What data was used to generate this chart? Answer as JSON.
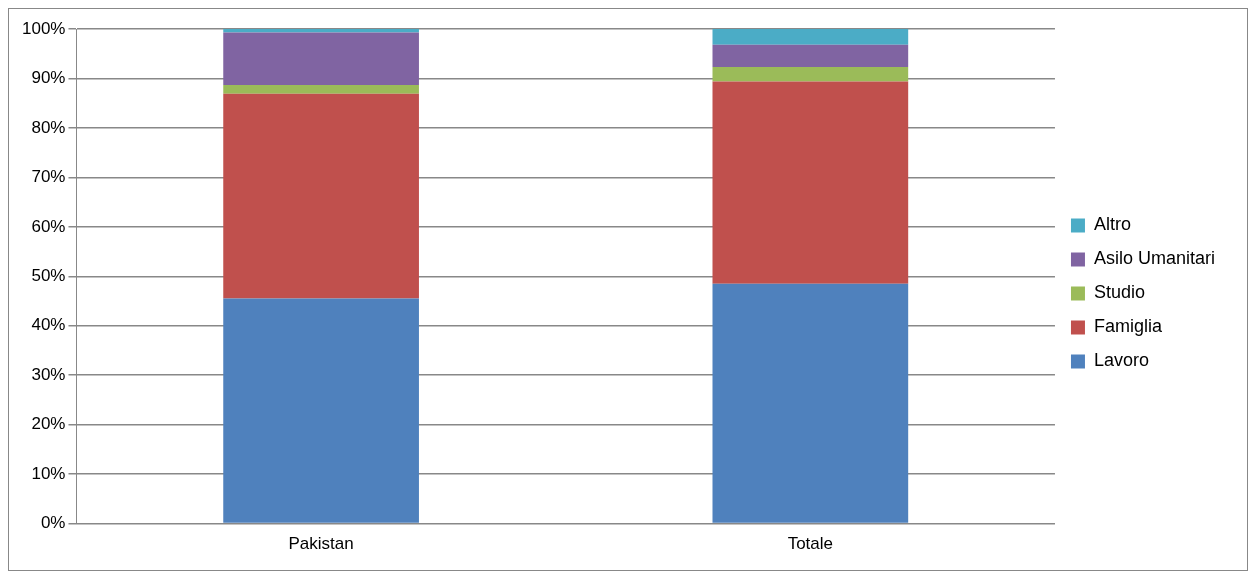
{
  "chart_data": {
    "type": "bar",
    "stacked": true,
    "categories": [
      "Pakistan",
      "Totale"
    ],
    "series": [
      {
        "name": "Lavoro",
        "color": "#4f81bd",
        "values": [
          45.5,
          48.5
        ]
      },
      {
        "name": "Famiglia",
        "color": "#c0504d",
        "values": [
          41.4,
          40.9
        ]
      },
      {
        "name": "Studio",
        "color": "#9bbb59",
        "values": [
          1.8,
          2.9
        ]
      },
      {
        "name": "Asilo Umanitari",
        "color": "#8064a2",
        "values": [
          10.6,
          4.5
        ]
      },
      {
        "name": "Altro",
        "color": "#4bacc6",
        "values": [
          0.7,
          3.2
        ]
      }
    ],
    "ylim": [
      0,
      100
    ],
    "yticks": [
      {
        "value": 0,
        "label": "0%"
      },
      {
        "value": 10,
        "label": "10%"
      },
      {
        "value": 20,
        "label": "20%"
      },
      {
        "value": 30,
        "label": "30%"
      },
      {
        "value": 40,
        "label": "40%"
      },
      {
        "value": 50,
        "label": "50%"
      },
      {
        "value": 60,
        "label": "60%"
      },
      {
        "value": 70,
        "label": "70%"
      },
      {
        "value": 80,
        "label": "80%"
      },
      {
        "value": 90,
        "label": "90%"
      },
      {
        "value": 100,
        "label": "100%"
      }
    ],
    "grid": "y",
    "legend": "right"
  }
}
